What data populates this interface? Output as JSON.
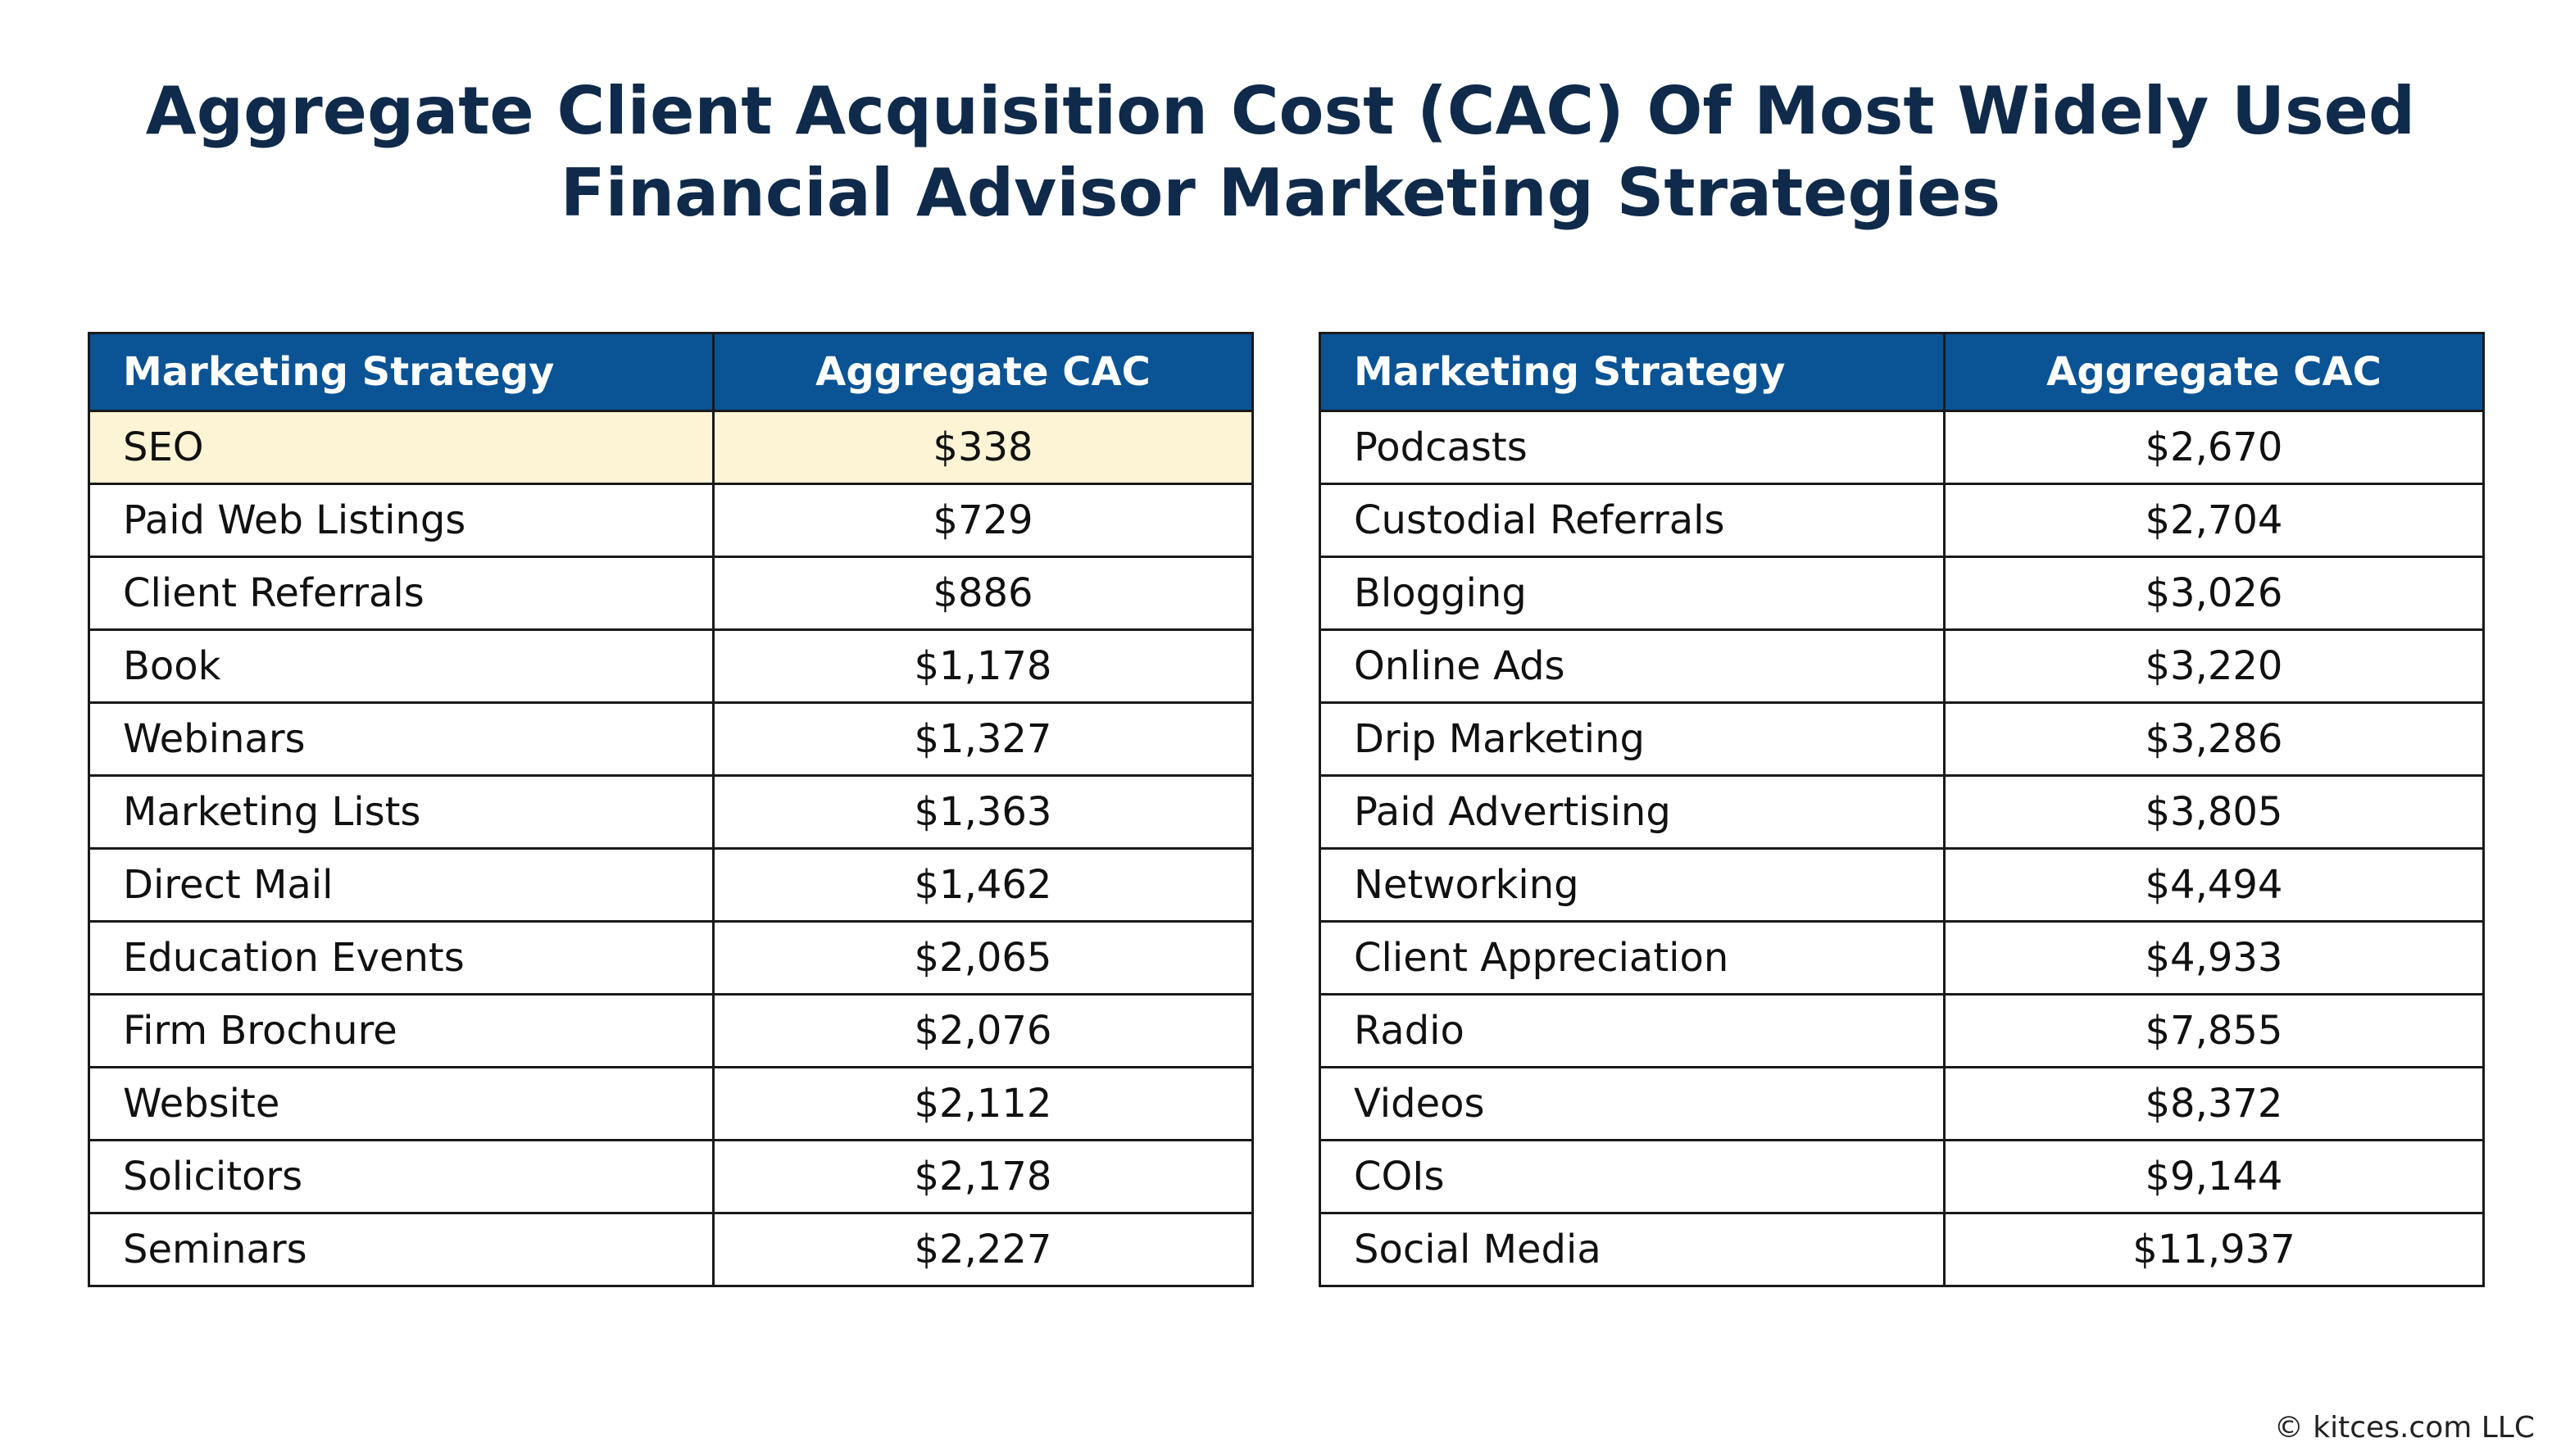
{
  "title": {
    "line1": "Aggregate Client Acquisition Cost (CAC) Of Most Widely Used",
    "line2": "Financial Advisor Marketing Strategies"
  },
  "columns": {
    "strategy": "Marketing Strategy",
    "cac": "Aggregate CAC"
  },
  "highlight_color": "#fdf3d5",
  "header_color": "#0a5394",
  "title_color": "#0f2a4a",
  "chart_data": {
    "type": "table",
    "title": "Aggregate Client Acquisition Cost (CAC) Of Most Widely Used Financial Advisor Marketing Strategies",
    "columns": [
      "Marketing Strategy",
      "Aggregate CAC"
    ],
    "highlighted_row": "SEO",
    "left_table": [
      {
        "strategy": "SEO",
        "cac": "$338",
        "value": 338
      },
      {
        "strategy": "Paid Web Listings",
        "cac": "$729",
        "value": 729
      },
      {
        "strategy": "Client Referrals",
        "cac": "$886",
        "value": 886
      },
      {
        "strategy": "Book",
        "cac": "$1,178",
        "value": 1178
      },
      {
        "strategy": "Webinars",
        "cac": "$1,327",
        "value": 1327
      },
      {
        "strategy": "Marketing Lists",
        "cac": "$1,363",
        "value": 1363
      },
      {
        "strategy": "Direct Mail",
        "cac": "$1,462",
        "value": 1462
      },
      {
        "strategy": "Education Events",
        "cac": "$2,065",
        "value": 2065
      },
      {
        "strategy": "Firm Brochure",
        "cac": "$2,076",
        "value": 2076
      },
      {
        "strategy": "Website",
        "cac": "$2,112",
        "value": 2112
      },
      {
        "strategy": "Solicitors",
        "cac": "$2,178",
        "value": 2178
      },
      {
        "strategy": "Seminars",
        "cac": "$2,227",
        "value": 2227
      }
    ],
    "right_table": [
      {
        "strategy": "Podcasts",
        "cac": "$2,670",
        "value": 2670
      },
      {
        "strategy": "Custodial Referrals",
        "cac": "$2,704",
        "value": 2704
      },
      {
        "strategy": "Blogging",
        "cac": "$3,026",
        "value": 3026
      },
      {
        "strategy": "Online Ads",
        "cac": "$3,220",
        "value": 3220
      },
      {
        "strategy": "Drip Marketing",
        "cac": "$3,286",
        "value": 3286
      },
      {
        "strategy": "Paid Advertising",
        "cac": "$3,805",
        "value": 3805
      },
      {
        "strategy": "Networking",
        "cac": "$4,494",
        "value": 4494
      },
      {
        "strategy": "Client Appreciation",
        "cac": "$4,933",
        "value": 4933
      },
      {
        "strategy": "Radio",
        "cac": "$7,855",
        "value": 7855
      },
      {
        "strategy": "Videos",
        "cac": "$8,372",
        "value": 8372
      },
      {
        "strategy": "COIs",
        "cac": "$9,144",
        "value": 9144
      },
      {
        "strategy": "Social Media",
        "cac": "$11,937",
        "value": 11937
      }
    ]
  },
  "copyright": "© kitces.com LLC"
}
